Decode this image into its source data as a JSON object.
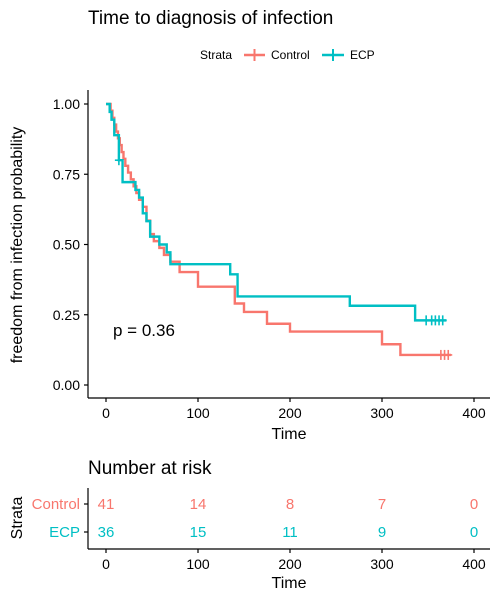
{
  "chart_data": [
    {
      "type": "line",
      "subtype": "kaplan-meier",
      "title": "Time to diagnosis of infection",
      "xlabel": "Time",
      "ylabel": "freedom from infection probability",
      "xlim": [
        0,
        400
      ],
      "ylim": [
        0,
        1
      ],
      "xticks": [
        0,
        100,
        200,
        300,
        400
      ],
      "yticks": [
        0.0,
        0.25,
        0.5,
        0.75,
        1.0
      ],
      "xtick_labels": [
        "0",
        "100",
        "200",
        "300",
        "400"
      ],
      "ytick_labels": [
        "0.00",
        "0.25",
        "0.50",
        "0.75",
        "1.00"
      ],
      "legend": {
        "title": "Strata",
        "placement": "top",
        "entries": [
          "Control",
          "ECP"
        ]
      },
      "annotation": "p = 0.36",
      "grid": false,
      "series": [
        {
          "name": "Control",
          "color": "#F8766D",
          "x": [
            0,
            5,
            7,
            9,
            11,
            13,
            15,
            17,
            19,
            21,
            24,
            27,
            30,
            33,
            36,
            40,
            44,
            48,
            52,
            58,
            63,
            70,
            80,
            100,
            130,
            140,
            150,
            175,
            200,
            300,
            320,
            375
          ],
          "y": [
            1.0,
            0.976,
            0.951,
            0.927,
            0.902,
            0.878,
            0.854,
            0.829,
            0.805,
            0.78,
            0.756,
            0.732,
            0.707,
            0.683,
            0.659,
            0.634,
            0.585,
            0.537,
            0.512,
            0.488,
            0.463,
            0.439,
            0.402,
            0.35,
            0.35,
            0.29,
            0.26,
            0.218,
            0.19,
            0.145,
            0.107,
            0.107
          ],
          "censored_x": [
            364,
            368,
            372
          ],
          "censored_y": [
            0.107,
            0.107,
            0.107
          ]
        },
        {
          "name": "ECP",
          "color": "#00BFC4",
          "x": [
            0,
            4,
            6,
            9,
            14,
            18,
            32,
            36,
            40,
            44,
            48,
            58,
            66,
            70,
            90,
            135,
            143,
            265,
            336,
            370
          ],
          "y": [
            1.0,
            0.972,
            0.944,
            0.889,
            0.8,
            0.722,
            0.694,
            0.667,
            0.611,
            0.583,
            0.528,
            0.5,
            0.472,
            0.43,
            0.43,
            0.394,
            0.315,
            0.282,
            0.23,
            0.23
          ],
          "censored_x": [
            14,
            348,
            354,
            358,
            362,
            366
          ],
          "censored_y": [
            0.8,
            0.23,
            0.23,
            0.23,
            0.23,
            0.23
          ]
        }
      ]
    },
    {
      "type": "table",
      "title": "Number at risk",
      "xlabel": "Time",
      "ylabel": "Strata",
      "xlim": [
        0,
        400
      ],
      "xticks": [
        0,
        100,
        200,
        300,
        400
      ],
      "xtick_labels": [
        "0",
        "100",
        "200",
        "300",
        "400"
      ],
      "rows": [
        {
          "name": "Control",
          "color": "#F8766D",
          "values": [
            41,
            14,
            8,
            7,
            0
          ]
        },
        {
          "name": "ECP",
          "color": "#00BFC4",
          "values": [
            36,
            15,
            11,
            9,
            0
          ]
        }
      ]
    }
  ]
}
